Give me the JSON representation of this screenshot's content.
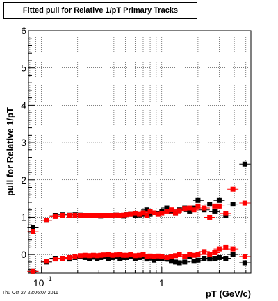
{
  "title": "Fitted pull for Relative 1/pT  Primary Tracks",
  "footer": "Thu Oct 27 22:06:07 2011",
  "chart_data": {
    "type": "scatter",
    "title": "Fitted pull for Relative 1/pT  Primary Tracks",
    "xlabel": "pT (GeV/c)",
    "ylabel": "pull for Relative 1/pT",
    "xscale": "log",
    "xlim": [
      0.078,
      5.5
    ],
    "ylim": [
      -0.5,
      6
    ],
    "grid": true,
    "x_tick_labels": [
      {
        "value": 0.1,
        "base": "10",
        "exp": "-1"
      },
      {
        "value": 1,
        "base": "1",
        "exp": ""
      }
    ],
    "y_tick_labels": [
      "0",
      "1",
      "2",
      "3",
      "4",
      "5",
      "6"
    ],
    "colors": {
      "black_series": "#000000",
      "red_series": "#ff0000"
    },
    "series": [
      {
        "color": "#000000",
        "points": [
          {
            "x": 0.085,
            "y": 0.72
          },
          {
            "x": 0.11,
            "y": 0.92
          },
          {
            "x": 0.13,
            "y": 1.05
          },
          {
            "x": 0.15,
            "y": 1.07
          },
          {
            "x": 0.17,
            "y": 1.06
          },
          {
            "x": 0.19,
            "y": 1.07
          },
          {
            "x": 0.21,
            "y": 1.06
          },
          {
            "x": 0.23,
            "y": 1.05
          },
          {
            "x": 0.25,
            "y": 1.05
          },
          {
            "x": 0.27,
            "y": 1.05
          },
          {
            "x": 0.29,
            "y": 1.05
          },
          {
            "x": 0.31,
            "y": 1.03
          },
          {
            "x": 0.33,
            "y": 1.05
          },
          {
            "x": 0.36,
            "y": 1.04
          },
          {
            "x": 0.39,
            "y": 1.05
          },
          {
            "x": 0.42,
            "y": 1.06
          },
          {
            "x": 0.45,
            "y": 1.05
          },
          {
            "x": 0.48,
            "y": 1.03
          },
          {
            "x": 0.51,
            "y": 1.07
          },
          {
            "x": 0.55,
            "y": 1.08
          },
          {
            "x": 0.6,
            "y": 1.05
          },
          {
            "x": 0.65,
            "y": 1.06
          },
          {
            "x": 0.7,
            "y": 1.08
          },
          {
            "x": 0.75,
            "y": 1.2
          },
          {
            "x": 0.8,
            "y": 1.08
          },
          {
            "x": 0.86,
            "y": 1.12
          },
          {
            "x": 0.93,
            "y": 1.1
          },
          {
            "x": 1.0,
            "y": 1.15
          },
          {
            "x": 1.1,
            "y": 1.25
          },
          {
            "x": 1.2,
            "y": 1.15
          },
          {
            "x": 1.3,
            "y": 1.1
          },
          {
            "x": 1.4,
            "y": 1.2
          },
          {
            "x": 1.55,
            "y": 1.25
          },
          {
            "x": 1.7,
            "y": 1.15
          },
          {
            "x": 1.85,
            "y": 1.25
          },
          {
            "x": 2.0,
            "y": 1.45
          },
          {
            "x": 2.25,
            "y": 1.2
          },
          {
            "x": 2.5,
            "y": 1.35
          },
          {
            "x": 2.75,
            "y": 1.15
          },
          {
            "x": 3.0,
            "y": 1.45
          },
          {
            "x": 3.4,
            "y": 1.05
          },
          {
            "x": 3.9,
            "y": 1.35
          },
          {
            "x": 4.9,
            "y": 2.42
          },
          {
            "x": 0.085,
            "y": -0.45
          },
          {
            "x": 0.11,
            "y": -0.2
          },
          {
            "x": 0.13,
            "y": -0.1
          },
          {
            "x": 0.15,
            "y": -0.1
          },
          {
            "x": 0.17,
            "y": -0.12
          },
          {
            "x": 0.19,
            "y": -0.08
          },
          {
            "x": 0.21,
            "y": -0.05
          },
          {
            "x": 0.23,
            "y": -0.08
          },
          {
            "x": 0.25,
            "y": -0.1
          },
          {
            "x": 0.27,
            "y": -0.07
          },
          {
            "x": 0.29,
            "y": -0.1
          },
          {
            "x": 0.31,
            "y": -0.08
          },
          {
            "x": 0.33,
            "y": -0.06
          },
          {
            "x": 0.36,
            "y": -0.1
          },
          {
            "x": 0.39,
            "y": -0.08
          },
          {
            "x": 0.42,
            "y": -0.05
          },
          {
            "x": 0.45,
            "y": -0.1
          },
          {
            "x": 0.48,
            "y": -0.08
          },
          {
            "x": 0.51,
            "y": -0.08
          },
          {
            "x": 0.55,
            "y": -0.05
          },
          {
            "x": 0.6,
            "y": -0.1
          },
          {
            "x": 0.65,
            "y": -0.08
          },
          {
            "x": 0.7,
            "y": -0.05
          },
          {
            "x": 0.75,
            "y": -0.12
          },
          {
            "x": 0.8,
            "y": -0.08
          },
          {
            "x": 0.86,
            "y": -0.15
          },
          {
            "x": 0.93,
            "y": -0.1
          },
          {
            "x": 1.0,
            "y": -0.1
          },
          {
            "x": 1.1,
            "y": -0.12
          },
          {
            "x": 1.2,
            "y": -0.18
          },
          {
            "x": 1.3,
            "y": -0.2
          },
          {
            "x": 1.4,
            "y": -0.22
          },
          {
            "x": 1.55,
            "y": -0.2
          },
          {
            "x": 1.7,
            "y": -0.05
          },
          {
            "x": 1.85,
            "y": -0.18
          },
          {
            "x": 2.0,
            "y": -0.15
          },
          {
            "x": 2.25,
            "y": -0.1
          },
          {
            "x": 2.5,
            "y": -0.12
          },
          {
            "x": 2.75,
            "y": -0.1
          },
          {
            "x": 3.0,
            "y": -0.08
          },
          {
            "x": 3.4,
            "y": -0.1
          },
          {
            "x": 3.9,
            "y": 0.0
          },
          {
            "x": 4.9,
            "y": -0.22
          }
        ]
      },
      {
        "color": "#ff0000",
        "points": [
          {
            "x": 0.085,
            "y": 0.62
          },
          {
            "x": 0.11,
            "y": 0.92
          },
          {
            "x": 0.13,
            "y": 1.02
          },
          {
            "x": 0.15,
            "y": 1.05
          },
          {
            "x": 0.17,
            "y": 1.05
          },
          {
            "x": 0.19,
            "y": 1.05
          },
          {
            "x": 0.21,
            "y": 1.05
          },
          {
            "x": 0.23,
            "y": 1.05
          },
          {
            "x": 0.25,
            "y": 1.04
          },
          {
            "x": 0.27,
            "y": 1.05
          },
          {
            "x": 0.29,
            "y": 1.05
          },
          {
            "x": 0.31,
            "y": 1.05
          },
          {
            "x": 0.33,
            "y": 1.05
          },
          {
            "x": 0.36,
            "y": 1.04
          },
          {
            "x": 0.39,
            "y": 1.05
          },
          {
            "x": 0.42,
            "y": 1.06
          },
          {
            "x": 0.45,
            "y": 1.05
          },
          {
            "x": 0.48,
            "y": 1.06
          },
          {
            "x": 0.51,
            "y": 1.07
          },
          {
            "x": 0.55,
            "y": 1.08
          },
          {
            "x": 0.6,
            "y": 1.1
          },
          {
            "x": 0.65,
            "y": 1.08
          },
          {
            "x": 0.7,
            "y": 1.12
          },
          {
            "x": 0.75,
            "y": 1.05
          },
          {
            "x": 0.8,
            "y": 1.15
          },
          {
            "x": 0.86,
            "y": 1.12
          },
          {
            "x": 0.93,
            "y": 1.08
          },
          {
            "x": 1.0,
            "y": 1.1
          },
          {
            "x": 1.1,
            "y": 1.15
          },
          {
            "x": 1.2,
            "y": 1.2
          },
          {
            "x": 1.3,
            "y": 1.1
          },
          {
            "x": 1.4,
            "y": 1.18
          },
          {
            "x": 1.55,
            "y": 1.22
          },
          {
            "x": 1.7,
            "y": 1.25
          },
          {
            "x": 1.85,
            "y": 1.2
          },
          {
            "x": 2.0,
            "y": 1.3
          },
          {
            "x": 2.25,
            "y": 1.25
          },
          {
            "x": 2.5,
            "y": 1.0
          },
          {
            "x": 2.75,
            "y": 1.3
          },
          {
            "x": 3.0,
            "y": 1.3
          },
          {
            "x": 3.4,
            "y": 1.1
          },
          {
            "x": 3.9,
            "y": 1.75
          },
          {
            "x": 4.9,
            "y": 1.38
          },
          {
            "x": 0.085,
            "y": -0.45
          },
          {
            "x": 0.11,
            "y": -0.18
          },
          {
            "x": 0.13,
            "y": -0.12
          },
          {
            "x": 0.15,
            "y": -0.1
          },
          {
            "x": 0.17,
            "y": -0.08
          },
          {
            "x": 0.19,
            "y": -0.05
          },
          {
            "x": 0.21,
            "y": -0.03
          },
          {
            "x": 0.23,
            "y": -0.02
          },
          {
            "x": 0.25,
            "y": -0.03
          },
          {
            "x": 0.27,
            "y": -0.02
          },
          {
            "x": 0.29,
            "y": -0.03
          },
          {
            "x": 0.31,
            "y": -0.02
          },
          {
            "x": 0.33,
            "y": -0.01
          },
          {
            "x": 0.36,
            "y": 0.0
          },
          {
            "x": 0.39,
            "y": -0.02
          },
          {
            "x": 0.42,
            "y": -0.01
          },
          {
            "x": 0.45,
            "y": 0.0
          },
          {
            "x": 0.48,
            "y": -0.02
          },
          {
            "x": 0.51,
            "y": -0.02
          },
          {
            "x": 0.55,
            "y": 0.0
          },
          {
            "x": 0.6,
            "y": -0.03
          },
          {
            "x": 0.65,
            "y": -0.02
          },
          {
            "x": 0.7,
            "y": 0.0
          },
          {
            "x": 0.75,
            "y": -0.05
          },
          {
            "x": 0.8,
            "y": -0.04
          },
          {
            "x": 0.86,
            "y": -0.05
          },
          {
            "x": 0.93,
            "y": -0.04
          },
          {
            "x": 1.0,
            "y": -0.05
          },
          {
            "x": 1.1,
            "y": -0.08
          },
          {
            "x": 1.2,
            "y": -0.05
          },
          {
            "x": 1.3,
            "y": -0.03
          },
          {
            "x": 1.4,
            "y": 0.0
          },
          {
            "x": 1.55,
            "y": -0.05
          },
          {
            "x": 1.7,
            "y": 0.0
          },
          {
            "x": 1.85,
            "y": -0.02
          },
          {
            "x": 2.0,
            "y": 0.0
          },
          {
            "x": 2.25,
            "y": 0.08
          },
          {
            "x": 2.5,
            "y": 0.0
          },
          {
            "x": 2.75,
            "y": 0.05
          },
          {
            "x": 3.0,
            "y": 0.15
          },
          {
            "x": 3.4,
            "y": 0.2
          },
          {
            "x": 3.9,
            "y": 0.15
          },
          {
            "x": 4.9,
            "y": -0.05
          }
        ]
      }
    ]
  }
}
